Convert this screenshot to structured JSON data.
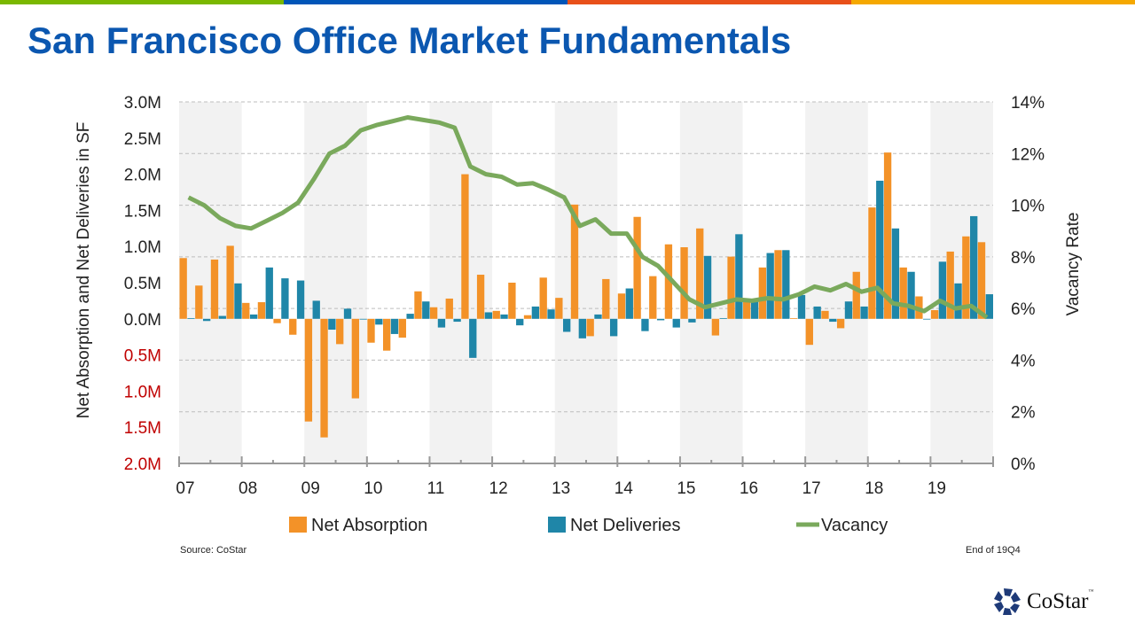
{
  "title": "San Francisco Office Market Fundamentals",
  "top_bar_colors": [
    "#7ab800",
    "#0055b8",
    "#e8501a",
    "#f5a800"
  ],
  "source": "Source: CoStar",
  "period_note": "End of 19Q4",
  "logo": {
    "text": "CoStar",
    "tm": "™"
  },
  "chart_data": {
    "type": "bar+line",
    "title": "",
    "ylabel_left": "Net Absorption and Net Deliveries in SF",
    "ylabel_right": "Vacancy Rate",
    "ylim_left": [
      -2.0,
      3.0
    ],
    "ylim_right": [
      0,
      14
    ],
    "left_ticks": [
      {
        "value": 3.0,
        "label": "3.0M",
        "negative": false
      },
      {
        "value": 2.5,
        "label": "2.5M",
        "negative": false
      },
      {
        "value": 2.0,
        "label": "2.0M",
        "negative": false
      },
      {
        "value": 1.5,
        "label": "1.5M",
        "negative": false
      },
      {
        "value": 1.0,
        "label": "1.0M",
        "negative": false
      },
      {
        "value": 0.5,
        "label": "0.5M",
        "negative": false
      },
      {
        "value": 0.0,
        "label": "0.0M",
        "negative": false
      },
      {
        "value": -0.5,
        "label": "0.5M",
        "negative": true
      },
      {
        "value": -1.0,
        "label": "1.0M",
        "negative": true
      },
      {
        "value": -1.5,
        "label": "1.5M",
        "negative": true
      },
      {
        "value": -2.0,
        "label": "2.0M",
        "negative": true
      }
    ],
    "right_ticks": [
      "0%",
      "2%",
      "4%",
      "6%",
      "8%",
      "10%",
      "12%",
      "14%"
    ],
    "x_tick_labels": [
      "07",
      "08",
      "09",
      "10",
      "11",
      "12",
      "13",
      "14",
      "15",
      "16",
      "17",
      "18",
      "19"
    ],
    "shaded_years": true,
    "grid": true,
    "legend_position": "bottom",
    "negative_label_color": "#c00000",
    "quarters_per_year": 4,
    "series": [
      {
        "name": "Net Absorption",
        "kind": "bar",
        "color": "#f39228",
        "unit": "M SF",
        "values": [
          0.84,
          0.46,
          0.82,
          1.01,
          0.22,
          0.23,
          -0.06,
          -0.22,
          -1.42,
          -1.64,
          -0.35,
          -1.1,
          -0.33,
          -0.44,
          -0.26,
          0.38,
          0.16,
          0.28,
          2.0,
          0.61,
          0.11,
          0.5,
          0.05,
          0.57,
          0.29,
          1.58,
          -0.24,
          0.55,
          0.35,
          1.41,
          0.59,
          1.03,
          0.99,
          1.25,
          -0.23,
          0.86,
          0.25,
          0.71,
          0.95,
          0.01,
          -0.36,
          0.11,
          -0.13,
          0.65,
          1.54,
          2.3,
          0.71,
          0.31,
          0.12,
          0.93,
          1.14,
          1.06
        ]
      },
      {
        "name": "Net Deliveries",
        "kind": "bar",
        "color": "#1f86a8",
        "unit": "M SF",
        "values": [
          0.01,
          -0.03,
          0.04,
          0.49,
          0.06,
          0.71,
          0.56,
          0.53,
          0.25,
          -0.15,
          0.14,
          -0.01,
          -0.08,
          -0.21,
          0.07,
          0.24,
          -0.12,
          -0.04,
          -0.54,
          0.09,
          0.06,
          -0.09,
          0.17,
          0.13,
          -0.18,
          -0.27,
          0.06,
          -0.24,
          0.42,
          -0.17,
          -0.02,
          -0.12,
          -0.05,
          0.87,
          0.01,
          1.17,
          0.25,
          0.91,
          0.95,
          0.33,
          0.17,
          -0.04,
          0.24,
          0.17,
          1.91,
          1.25,
          0.65,
          0.0,
          0.79,
          0.49,
          1.42,
          0.34
        ]
      },
      {
        "name": "Vacancy",
        "kind": "line",
        "color": "#7aa95c",
        "unit": "%",
        "values": [
          10.3,
          10.0,
          9.5,
          9.2,
          9.1,
          9.4,
          9.7,
          10.1,
          11.0,
          12.0,
          12.3,
          12.9,
          13.1,
          13.25,
          13.4,
          13.3,
          13.2,
          13.0,
          11.5,
          11.2,
          11.1,
          10.8,
          10.85,
          10.6,
          10.3,
          9.2,
          9.45,
          8.9,
          8.9,
          8.0,
          7.65,
          7.0,
          6.35,
          6.05,
          6.2,
          6.35,
          6.3,
          6.4,
          6.35,
          6.55,
          6.85,
          6.7,
          6.95,
          6.65,
          6.8,
          6.2,
          6.1,
          5.9,
          6.3,
          6.0,
          6.1,
          5.65
        ]
      }
    ]
  }
}
